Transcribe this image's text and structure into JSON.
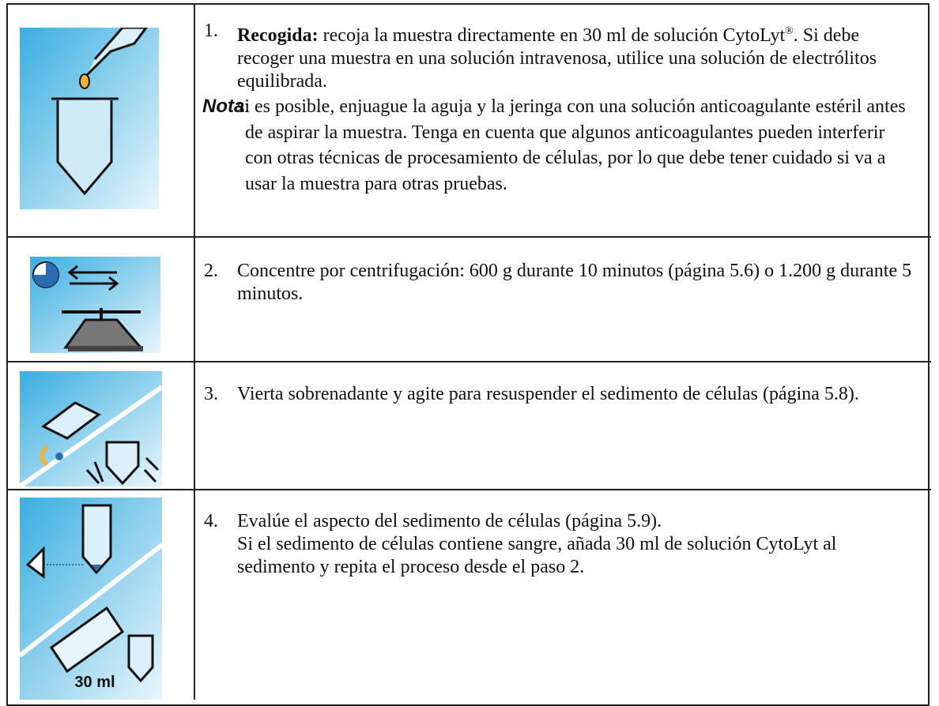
{
  "steps": [
    {
      "number": "1.",
      "lead": "Recogida:",
      "text": " recoja la muestra directamente en 30 ml de solución CytoLyt",
      "sup": "®",
      "text_after": ". Si debe recoger una muestra en una solución intravenosa, utilice una solución de electrólitos equilibrada.",
      "note_label": "Nota",
      "note_sep": ":",
      "note_text": "si es posible, enjuague la aguja y la jeringa con una solución anticoagulante estéril antes de aspirar la muestra. Tenga en cuenta que algunos anticoagulantes pueden interferir con otras técnicas de procesamiento de células, por lo que debe tener cuidado si va a usar la muestra para otras pruebas."
    },
    {
      "number": "2.",
      "text": "Concentre por centrifugación: 600 g durante 10 minutos (página 5.6) o 1.200 g durante 5 minutos."
    },
    {
      "number": "3.",
      "text": "Vierta sobrenadante y agite para resuspender el sedimento de células (página 5.8)."
    },
    {
      "number": "4.",
      "text": "Evalúe el aspecto del sedimento de células (página 5.9).",
      "text2": "Si el sedimento de células contiene sangre, añada 30 ml de solución CytoLyt al sedimento y repita el proceso desde el paso 2.",
      "icon_label": "30 ml"
    }
  ]
}
